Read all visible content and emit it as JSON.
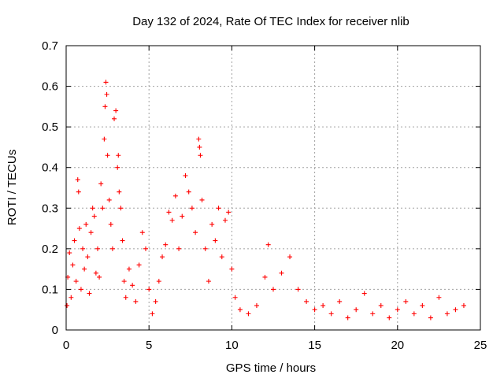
{
  "chart_data": {
    "type": "scatter",
    "title": "Day 132 of 2024, Rate Of TEC Index for receiver nlib",
    "xlabel": "GPS time / hours",
    "ylabel": "ROTI / TECUs",
    "xlim": [
      0,
      25
    ],
    "ylim": [
      0,
      0.7
    ],
    "xticks": [
      0,
      5,
      10,
      15,
      20,
      25
    ],
    "yticks": [
      0,
      0.1,
      0.2,
      0.3,
      0.4,
      0.5,
      0.6,
      0.7
    ],
    "grid": true,
    "marker": "+",
    "color": "#ff0000",
    "series": [
      {
        "name": "ROTI",
        "points": [
          [
            0.05,
            0.06
          ],
          [
            0.1,
            0.13
          ],
          [
            0.2,
            0.19
          ],
          [
            0.3,
            0.08
          ],
          [
            0.4,
            0.16
          ],
          [
            0.5,
            0.22
          ],
          [
            0.6,
            0.12
          ],
          [
            0.7,
            0.37
          ],
          [
            0.75,
            0.34
          ],
          [
            0.8,
            0.25
          ],
          [
            0.9,
            0.1
          ],
          [
            1.0,
            0.2
          ],
          [
            1.1,
            0.15
          ],
          [
            1.2,
            0.26
          ],
          [
            1.3,
            0.18
          ],
          [
            1.4,
            0.09
          ],
          [
            1.5,
            0.24
          ],
          [
            1.6,
            0.3
          ],
          [
            1.7,
            0.28
          ],
          [
            1.8,
            0.14
          ],
          [
            1.9,
            0.2
          ],
          [
            2.0,
            0.13
          ],
          [
            2.1,
            0.36
          ],
          [
            2.2,
            0.3
          ],
          [
            2.3,
            0.47
          ],
          [
            2.35,
            0.55
          ],
          [
            2.4,
            0.61
          ],
          [
            2.45,
            0.58
          ],
          [
            2.5,
            0.43
          ],
          [
            2.6,
            0.32
          ],
          [
            2.7,
            0.26
          ],
          [
            2.8,
            0.2
          ],
          [
            2.9,
            0.52
          ],
          [
            3.0,
            0.54
          ],
          [
            3.1,
            0.4
          ],
          [
            3.15,
            0.43
          ],
          [
            3.2,
            0.34
          ],
          [
            3.3,
            0.3
          ],
          [
            3.4,
            0.22
          ],
          [
            3.5,
            0.12
          ],
          [
            3.6,
            0.08
          ],
          [
            3.8,
            0.15
          ],
          [
            4.0,
            0.11
          ],
          [
            4.2,
            0.07
          ],
          [
            4.4,
            0.16
          ],
          [
            4.6,
            0.24
          ],
          [
            4.8,
            0.2
          ],
          [
            5.0,
            0.1
          ],
          [
            5.2,
            0.04
          ],
          [
            5.4,
            0.07
          ],
          [
            5.6,
            0.12
          ],
          [
            5.8,
            0.18
          ],
          [
            6.0,
            0.21
          ],
          [
            6.2,
            0.29
          ],
          [
            6.4,
            0.27
          ],
          [
            6.6,
            0.33
          ],
          [
            6.8,
            0.2
          ],
          [
            7.0,
            0.28
          ],
          [
            7.2,
            0.38
          ],
          [
            7.4,
            0.34
          ],
          [
            7.6,
            0.3
          ],
          [
            7.8,
            0.24
          ],
          [
            8.0,
            0.47
          ],
          [
            8.05,
            0.45
          ],
          [
            8.1,
            0.43
          ],
          [
            8.2,
            0.32
          ],
          [
            8.4,
            0.2
          ],
          [
            8.6,
            0.12
          ],
          [
            8.8,
            0.26
          ],
          [
            9.0,
            0.22
          ],
          [
            9.2,
            0.3
          ],
          [
            9.4,
            0.18
          ],
          [
            9.6,
            0.27
          ],
          [
            9.8,
            0.29
          ],
          [
            10.0,
            0.15
          ],
          [
            10.2,
            0.08
          ],
          [
            10.5,
            0.05
          ],
          [
            11.0,
            0.04
          ],
          [
            11.5,
            0.06
          ],
          [
            12.0,
            0.13
          ],
          [
            12.2,
            0.21
          ],
          [
            12.5,
            0.1
          ],
          [
            13.0,
            0.14
          ],
          [
            13.5,
            0.18
          ],
          [
            14.0,
            0.1
          ],
          [
            14.5,
            0.07
          ],
          [
            15.0,
            0.05
          ],
          [
            15.5,
            0.06
          ],
          [
            16.0,
            0.04
          ],
          [
            16.5,
            0.07
          ],
          [
            17.0,
            0.03
          ],
          [
            17.5,
            0.05
          ],
          [
            18.0,
            0.09
          ],
          [
            18.5,
            0.04
          ],
          [
            19.0,
            0.06
          ],
          [
            19.5,
            0.03
          ],
          [
            20.0,
            0.05
          ],
          [
            20.5,
            0.07
          ],
          [
            21.0,
            0.04
          ],
          [
            21.5,
            0.06
          ],
          [
            22.0,
            0.03
          ],
          [
            22.5,
            0.08
          ],
          [
            23.0,
            0.04
          ],
          [
            23.5,
            0.05
          ],
          [
            24.0,
            0.06
          ]
        ]
      }
    ]
  }
}
